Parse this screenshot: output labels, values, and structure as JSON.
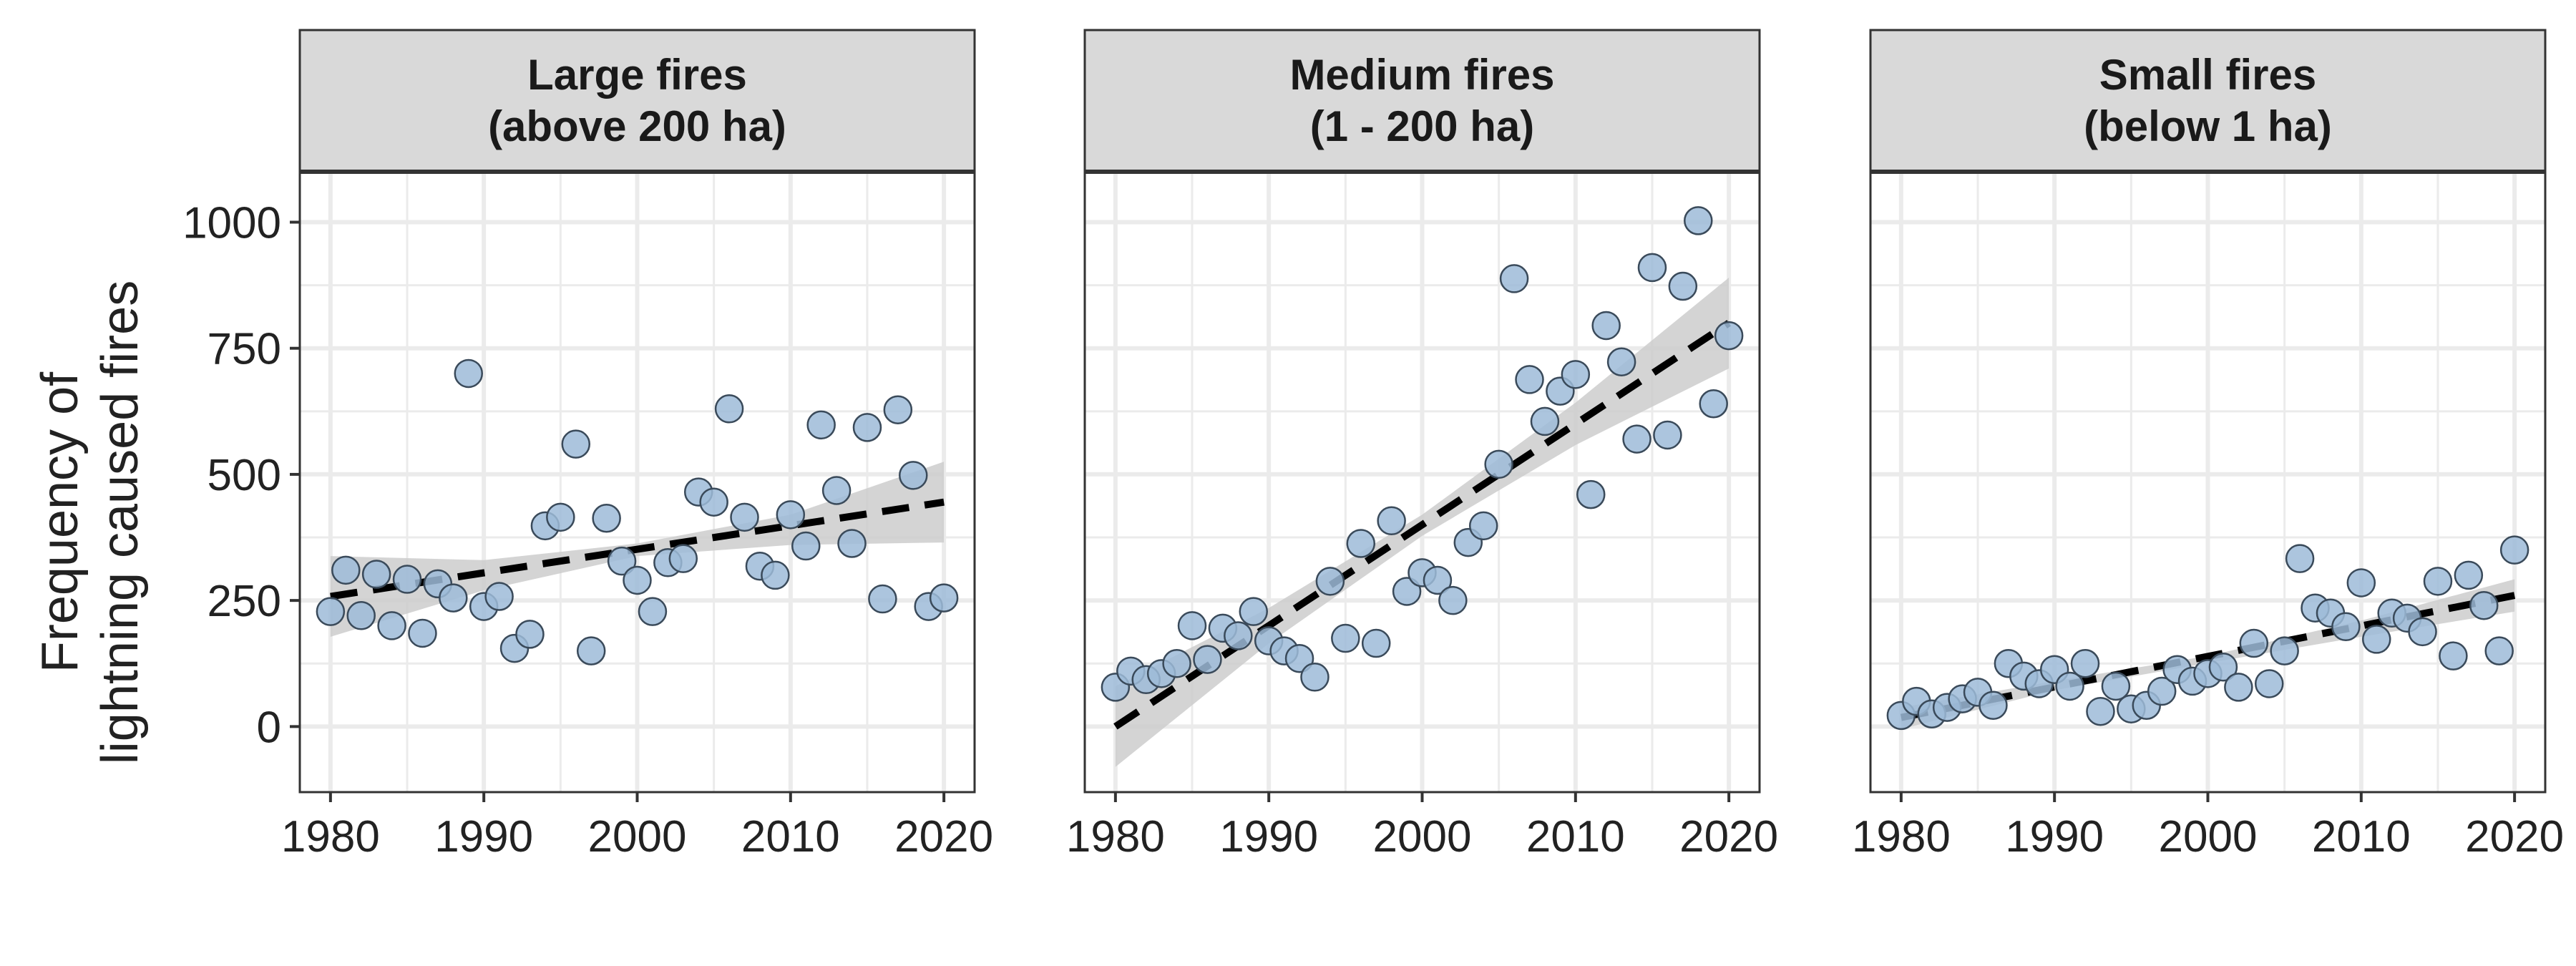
{
  "chart_data": {
    "type": "scatter",
    "ylabel": [
      "Frequency of",
      "lightning caused fires"
    ],
    "xlabel": "",
    "xlim": [
      1978,
      2022
    ],
    "ylim": [
      -130,
      1100
    ],
    "x_ticks": [
      1980,
      1990,
      2000,
      2010,
      2020
    ],
    "y_ticks": [
      0,
      250,
      500,
      750,
      1000
    ],
    "grid": true,
    "legend": "none",
    "colors": {
      "point_fill": "#9dbbd8",
      "point_stroke": "#3a4a5a",
      "band": "#cccccc",
      "trend_line": "#000000",
      "strip_bg": "#d9d9d9",
      "grid": "#ebebeb"
    },
    "panels": [
      {
        "title": [
          "Large fires",
          "(above 200 ha)"
        ],
        "points": [
          [
            1980,
            228
          ],
          [
            1981,
            310
          ],
          [
            1982,
            220
          ],
          [
            1983,
            302
          ],
          [
            1984,
            200
          ],
          [
            1985,
            292
          ],
          [
            1986,
            185
          ],
          [
            1987,
            283
          ],
          [
            1988,
            255
          ],
          [
            1989,
            700
          ],
          [
            1990,
            238
          ],
          [
            1991,
            258
          ],
          [
            1992,
            155
          ],
          [
            1993,
            183
          ],
          [
            1994,
            398
          ],
          [
            1995,
            415
          ],
          [
            1996,
            560
          ],
          [
            1997,
            150
          ],
          [
            1998,
            413
          ],
          [
            1999,
            328
          ],
          [
            2000,
            290
          ],
          [
            2001,
            228
          ],
          [
            2002,
            325
          ],
          [
            2003,
            333
          ],
          [
            2004,
            465
          ],
          [
            2005,
            445
          ],
          [
            2006,
            630
          ],
          [
            2007,
            415
          ],
          [
            2008,
            318
          ],
          [
            2009,
            300
          ],
          [
            2010,
            420
          ],
          [
            2011,
            358
          ],
          [
            2012,
            598
          ],
          [
            2013,
            468
          ],
          [
            2014,
            363
          ],
          [
            2015,
            593
          ],
          [
            2016,
            253
          ],
          [
            2017,
            628
          ],
          [
            2018,
            498
          ],
          [
            2019,
            238
          ],
          [
            2020,
            255
          ]
        ],
        "trend": {
          "x": [
            1980,
            2020
          ],
          "y": [
            258,
            445
          ]
        },
        "band": {
          "x": [
            1980,
            1990,
            2000,
            2010,
            2020
          ],
          "lower": [
            178,
            270,
            338,
            360,
            365
          ],
          "upper": [
            338,
            330,
            363,
            420,
            525
          ]
        }
      },
      {
        "title": [
          "Medium fires",
          "(1 - 200 ha)"
        ],
        "points": [
          [
            1980,
            78
          ],
          [
            1981,
            110
          ],
          [
            1982,
            93
          ],
          [
            1983,
            105
          ],
          [
            1984,
            125
          ],
          [
            1985,
            200
          ],
          [
            1986,
            133
          ],
          [
            1987,
            195
          ],
          [
            1988,
            180
          ],
          [
            1989,
            228
          ],
          [
            1990,
            170
          ],
          [
            1991,
            150
          ],
          [
            1992,
            135
          ],
          [
            1993,
            98
          ],
          [
            1994,
            288
          ],
          [
            1995,
            175
          ],
          [
            1996,
            363
          ],
          [
            1997,
            165
          ],
          [
            1998,
            408
          ],
          [
            1999,
            268
          ],
          [
            2000,
            305
          ],
          [
            2001,
            290
          ],
          [
            2002,
            250
          ],
          [
            2003,
            365
          ],
          [
            2004,
            398
          ],
          [
            2005,
            520
          ],
          [
            2006,
            888
          ],
          [
            2007,
            688
          ],
          [
            2008,
            605
          ],
          [
            2009,
            665
          ],
          [
            2010,
            698
          ],
          [
            2011,
            460
          ],
          [
            2012,
            795
          ],
          [
            2013,
            723
          ],
          [
            2014,
            570
          ],
          [
            2015,
            910
          ],
          [
            2016,
            578
          ],
          [
            2017,
            873
          ],
          [
            2018,
            1003
          ],
          [
            2019,
            640
          ],
          [
            2020,
            775
          ]
        ],
        "trend": {
          "x": [
            1980,
            2020
          ],
          "y": [
            0,
            800
          ]
        },
        "band": {
          "x": [
            1980,
            1990,
            2000,
            2010,
            2020
          ],
          "lower": [
            -80,
            165,
            378,
            558,
            710
          ],
          "upper": [
            80,
            235,
            420,
            642,
            890
          ]
        }
      },
      {
        "title": [
          "Small fires",
          "(below 1 ha)"
        ],
        "points": [
          [
            1980,
            22
          ],
          [
            1981,
            50
          ],
          [
            1982,
            25
          ],
          [
            1983,
            38
          ],
          [
            1984,
            55
          ],
          [
            1985,
            68
          ],
          [
            1986,
            42
          ],
          [
            1987,
            125
          ],
          [
            1988,
            100
          ],
          [
            1989,
            85
          ],
          [
            1990,
            113
          ],
          [
            1991,
            80
          ],
          [
            1992,
            125
          ],
          [
            1993,
            30
          ],
          [
            1994,
            80
          ],
          [
            1995,
            35
          ],
          [
            1996,
            42
          ],
          [
            1997,
            70
          ],
          [
            1998,
            113
          ],
          [
            1999,
            90
          ],
          [
            2000,
            105
          ],
          [
            2001,
            118
          ],
          [
            2002,
            78
          ],
          [
            2003,
            165
          ],
          [
            2004,
            85
          ],
          [
            2005,
            150
          ],
          [
            2006,
            333
          ],
          [
            2007,
            235
          ],
          [
            2008,
            225
          ],
          [
            2009,
            198
          ],
          [
            2010,
            285
          ],
          [
            2011,
            173
          ],
          [
            2012,
            225
          ],
          [
            2013,
            215
          ],
          [
            2014,
            188
          ],
          [
            2015,
            288
          ],
          [
            2016,
            140
          ],
          [
            2017,
            300
          ],
          [
            2018,
            240
          ],
          [
            2019,
            150
          ],
          [
            2020,
            350
          ]
        ],
        "trend": {
          "x": [
            1980,
            2020
          ],
          "y": [
            18,
            260
          ]
        },
        "band": {
          "x": [
            1980,
            1990,
            2000,
            2010,
            2020
          ],
          "lower": [
            -5,
            72,
            126,
            178,
            228
          ],
          "upper": [
            38,
            90,
            140,
            210,
            292
          ]
        }
      }
    ]
  }
}
